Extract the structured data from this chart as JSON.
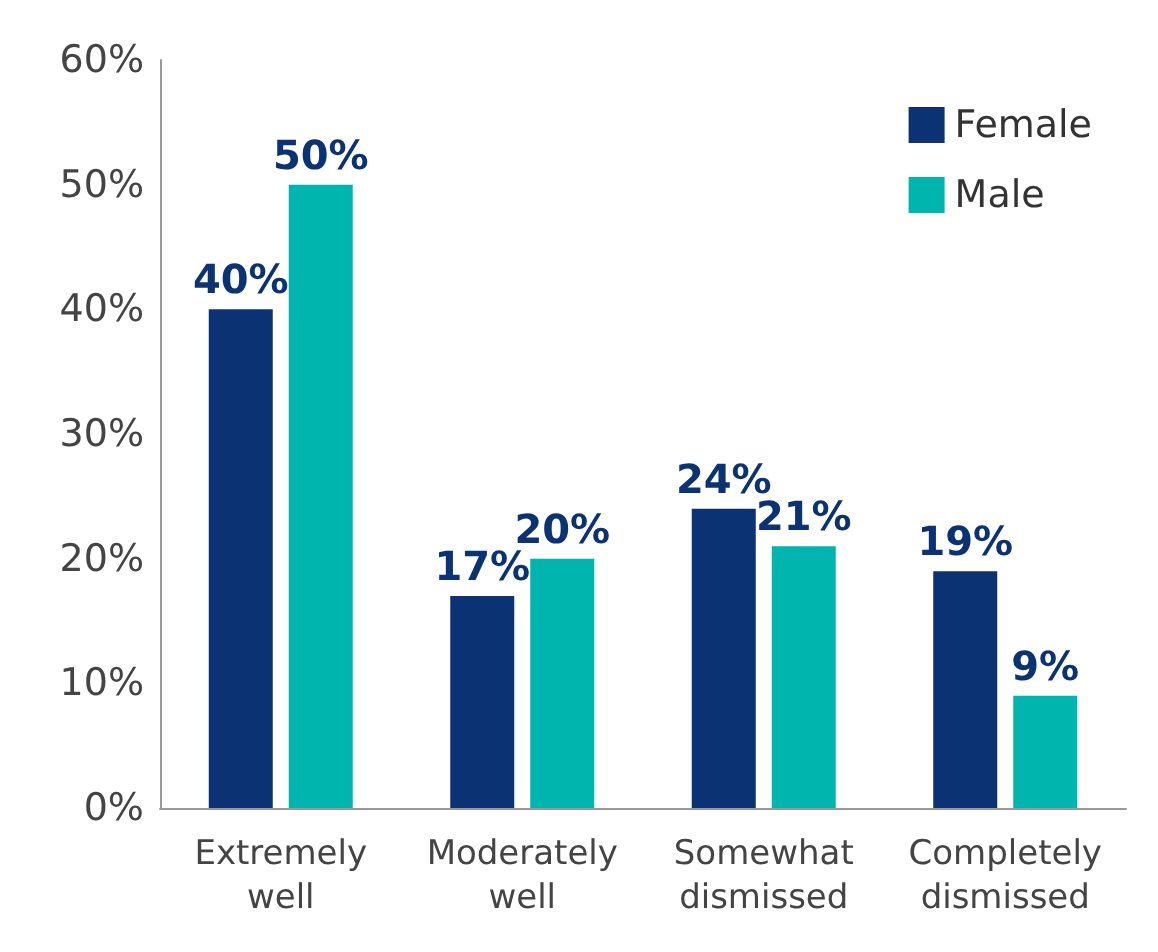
{
  "chart_data": {
    "type": "bar",
    "categories": [
      "Extremely\nwell",
      "Moderately\nwell",
      "Somewhat\ndismissed",
      "Completely\ndismissed"
    ],
    "series": [
      {
        "name": "Female",
        "color": "#0b3272",
        "values": [
          40,
          17,
          24,
          19
        ],
        "value_labels": [
          "40%",
          "17%",
          "24%",
          "19%"
        ]
      },
      {
        "name": "Male",
        "color": "#00b5ad",
        "values": [
          50,
          20,
          21,
          9
        ],
        "value_labels": [
          "50%",
          "20%",
          "21%",
          "9%"
        ]
      }
    ],
    "ylim": [
      0,
      60
    ],
    "yticks": [
      {
        "value": 0,
        "label": "0%"
      },
      {
        "value": 10,
        "label": "10%"
      },
      {
        "value": 20,
        "label": "20%"
      },
      {
        "value": 30,
        "label": "30%"
      },
      {
        "value": 40,
        "label": "40%"
      },
      {
        "value": 50,
        "label": "50%"
      },
      {
        "value": 60,
        "label": "60%"
      }
    ],
    "grid": false,
    "legend": "top right"
  }
}
